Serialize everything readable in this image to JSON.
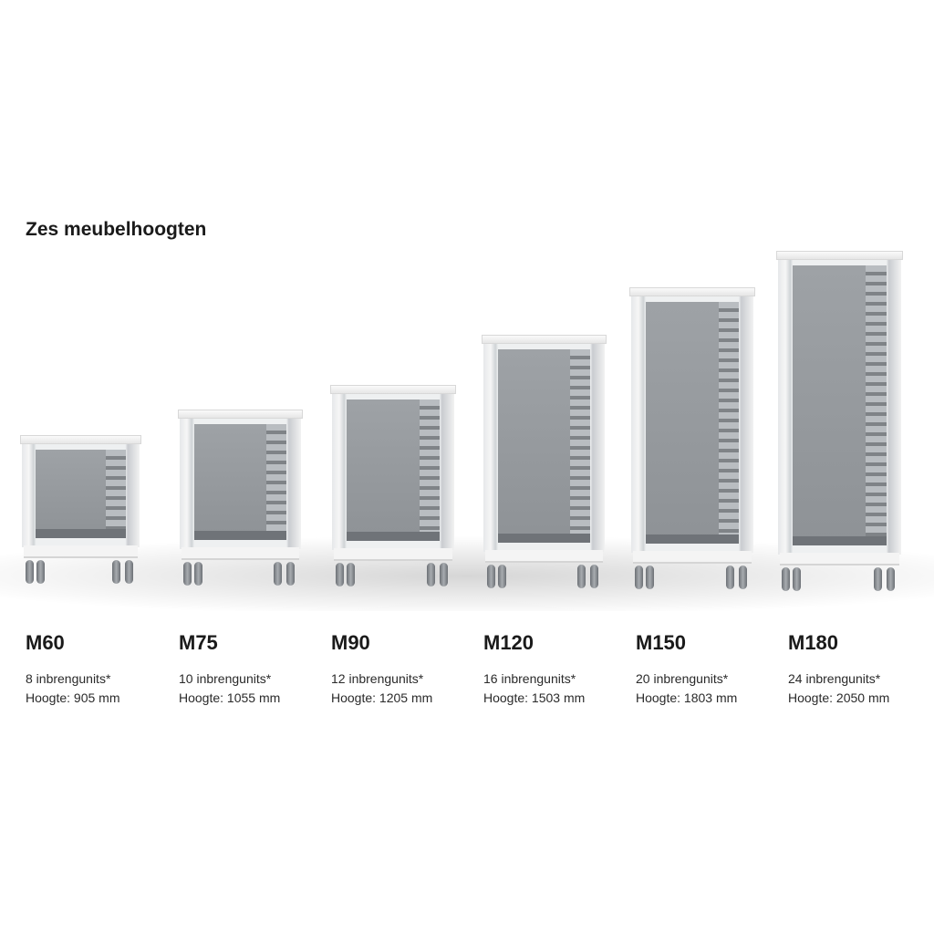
{
  "title": "Zes meubelhoogten",
  "products": [
    {
      "model": "M60",
      "units": "8 inbrengunits*",
      "height": "Hoogte: 905 mm"
    },
    {
      "model": "M75",
      "units": "10 inbrengunits*",
      "height": "Hoogte: 1055 mm"
    },
    {
      "model": "M90",
      "units": "12 inbrengunits*",
      "height": "Hoogte: 1205 mm"
    },
    {
      "model": "M120",
      "units": "16 inbrengunits*",
      "height": "Hoogte: 1503 mm"
    },
    {
      "model": "M150",
      "units": "20 inbrengunits*",
      "height": "Hoogte: 1803 mm"
    },
    {
      "model": "M180",
      "units": "24 inbrengunits*",
      "height": "Hoogte: 2050 mm"
    }
  ]
}
